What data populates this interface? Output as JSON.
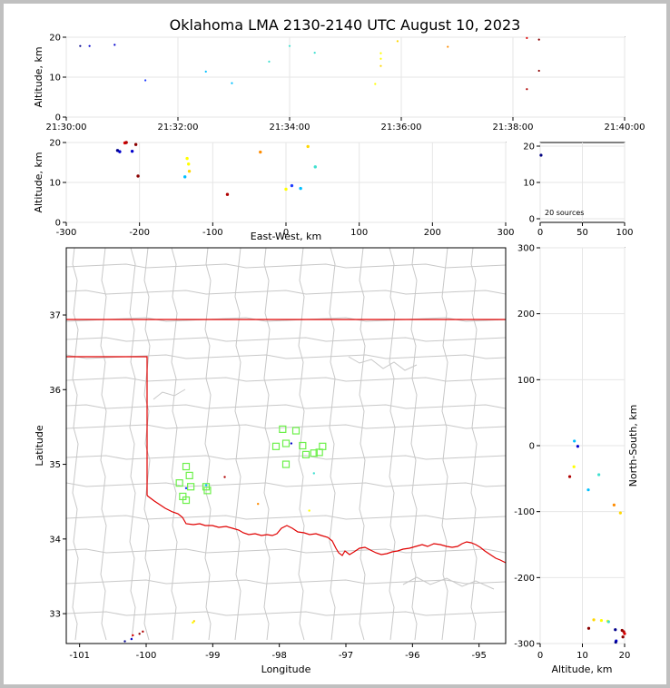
{
  "title": "Oklahoma LMA 2130-2140 UTC August 10, 2023",
  "panels": {
    "time_height": {
      "ylabel": "Altitude, km",
      "xticks": [
        "21:30:00",
        "21:32:00",
        "21:34:00",
        "21:36:00",
        "21:38:00",
        "21:40:00"
      ],
      "yticks": [
        "0",
        "10",
        "20"
      ]
    },
    "ew_height": {
      "ylabel": "Altitude, km",
      "xlabel": "East-West, km",
      "xticks": [
        "-300",
        "-200",
        "-100",
        "0",
        "100",
        "200",
        "300"
      ],
      "yticks": [
        "0",
        "10",
        "20"
      ]
    },
    "histogram": {
      "xticks": [
        "0",
        "50",
        "100"
      ],
      "yticks": [
        "0",
        "10",
        "20"
      ],
      "annotation": "20 sources"
    },
    "plan": {
      "xlabel": "Longitude",
      "ylabel": "Latitude",
      "xticks": [
        "-101",
        "-100",
        "-99",
        "-98",
        "-97",
        "-96",
        "-95"
      ],
      "yticks": [
        "33",
        "34",
        "35",
        "36",
        "37"
      ]
    },
    "ns_height": {
      "xlabel": "Altitude, km",
      "ylabel": "North-South, km",
      "xticks": [
        "0",
        "10",
        "20"
      ],
      "yticks": [
        "-300",
        "-200",
        "-100",
        "0",
        "100",
        "200",
        "300"
      ]
    }
  },
  "chart_data": [
    {
      "type": "scatter",
      "panel": "time vs altitude",
      "xlim": [
        "21:30:00",
        "21:40:00"
      ],
      "ylim": [
        0,
        20
      ],
      "ylabel": "Altitude, km",
      "points": [
        {
          "t": "21:30:15",
          "alt": 17.8,
          "color": "#00008b"
        },
        {
          "t": "21:30:25",
          "alt": 17.8,
          "color": "#0000cd"
        },
        {
          "t": "21:30:52",
          "alt": 18.1,
          "color": "#0000cd"
        },
        {
          "t": "21:31:25",
          "alt": 9.2,
          "color": "#1e3cff"
        },
        {
          "t": "21:32:30",
          "alt": 11.4,
          "color": "#00bfff"
        },
        {
          "t": "21:32:58",
          "alt": 8.5,
          "color": "#00bfff"
        },
        {
          "t": "21:33:38",
          "alt": 13.9,
          "color": "#40e0d0"
        },
        {
          "t": "21:34:00",
          "alt": 17.8,
          "color": "#40e0d0"
        },
        {
          "t": "21:34:27",
          "alt": 16.1,
          "color": "#40e0d0"
        },
        {
          "t": "21:35:32",
          "alt": 8.3,
          "color": "#ffff00"
        },
        {
          "t": "21:35:38",
          "alt": 16.0,
          "color": "#ffff00"
        },
        {
          "t": "21:35:38",
          "alt": 14.6,
          "color": "#ffff00"
        },
        {
          "t": "21:35:38",
          "alt": 12.8,
          "color": "#ffd700"
        },
        {
          "t": "21:35:56",
          "alt": 19.0,
          "color": "#ffd700"
        },
        {
          "t": "21:36:50",
          "alt": 17.6,
          "color": "#ff8c00"
        },
        {
          "t": "21:38:15",
          "alt": 19.8,
          "color": "#dc0000"
        },
        {
          "t": "21:38:15",
          "alt": 7.0,
          "color": "#b00000"
        },
        {
          "t": "21:38:28",
          "alt": 19.4,
          "color": "#8b0000"
        },
        {
          "t": "21:38:28",
          "alt": 11.6,
          "color": "#8b0000"
        }
      ]
    },
    {
      "type": "scatter",
      "panel": "east-west vs altitude",
      "xlim": [
        -300,
        300
      ],
      "ylim": [
        0,
        20
      ],
      "xlabel": "East-West, km",
      "ylabel": "Altitude, km",
      "points": [
        {
          "x": -230,
          "y": 18.0,
          "color": "#00008b"
        },
        {
          "x": -227,
          "y": 17.7,
          "color": "#0000cd"
        },
        {
          "x": -220,
          "y": 19.9,
          "color": "#dc0000"
        },
        {
          "x": -218,
          "y": 20.0,
          "color": "#b00000"
        },
        {
          "x": -210,
          "y": 17.8,
          "color": "#0000cd"
        },
        {
          "x": -205,
          "y": 19.5,
          "color": "#8b0000"
        },
        {
          "x": -202,
          "y": 11.6,
          "color": "#8b0000"
        },
        {
          "x": -135,
          "y": 16.0,
          "color": "#ffff00"
        },
        {
          "x": -133,
          "y": 14.6,
          "color": "#ffff00"
        },
        {
          "x": -132,
          "y": 12.8,
          "color": "#ffd700"
        },
        {
          "x": -138,
          "y": 11.4,
          "color": "#00bfff"
        },
        {
          "x": -80,
          "y": 7.0,
          "color": "#b00000"
        },
        {
          "x": -35,
          "y": 17.6,
          "color": "#ff8c00"
        },
        {
          "x": 0,
          "y": 8.3,
          "color": "#ffff00"
        },
        {
          "x": 8,
          "y": 9.2,
          "color": "#1e3cff"
        },
        {
          "x": 20,
          "y": 8.5,
          "color": "#00bfff"
        },
        {
          "x": 30,
          "y": 19.0,
          "color": "#ffd700"
        },
        {
          "x": 40,
          "y": 13.9,
          "color": "#40e0d0"
        }
      ]
    },
    {
      "type": "scatter",
      "panel": "altitude histogram",
      "xlim": [
        0,
        100
      ],
      "ylim": [
        0,
        20
      ],
      "annotation": "20 sources",
      "points": [
        {
          "x": 1,
          "y": 17.5,
          "color": "#000080"
        }
      ]
    },
    {
      "type": "scatter",
      "panel": "plan view",
      "xlim": [
        -101.2,
        -94.6
      ],
      "ylim": [
        32.6,
        37.9
      ],
      "xlabel": "Longitude",
      "ylabel": "Latitude",
      "stations": [
        {
          "lon": -97.95,
          "lat": 35.47
        },
        {
          "lon": -97.75,
          "lat": 35.45
        },
        {
          "lon": -97.9,
          "lat": 35.28
        },
        {
          "lon": -98.05,
          "lat": 35.24
        },
        {
          "lon": -97.65,
          "lat": 35.25
        },
        {
          "lon": -97.48,
          "lat": 35.15
        },
        {
          "lon": -97.6,
          "lat": 35.13
        },
        {
          "lon": -97.35,
          "lat": 35.24
        },
        {
          "lon": -97.4,
          "lat": 35.16
        },
        {
          "lon": -97.9,
          "lat": 35.0
        },
        {
          "lon": -99.4,
          "lat": 34.97
        },
        {
          "lon": -99.35,
          "lat": 34.85
        },
        {
          "lon": -99.5,
          "lat": 34.75
        },
        {
          "lon": -99.33,
          "lat": 34.7
        },
        {
          "lon": -99.1,
          "lat": 34.7
        },
        {
          "lon": -99.45,
          "lat": 34.57
        },
        {
          "lon": -99.4,
          "lat": 34.52
        },
        {
          "lon": -99.08,
          "lat": 34.65
        }
      ],
      "sources": [
        {
          "lon": -100.32,
          "lat": 32.63,
          "color": "#00008b"
        },
        {
          "lon": -100.22,
          "lat": 32.66,
          "color": "#0000cd"
        },
        {
          "lon": -100.2,
          "lat": 32.71,
          "color": "#dc0000"
        },
        {
          "lon": -100.1,
          "lat": 32.73,
          "color": "#8b0000"
        },
        {
          "lon": -100.05,
          "lat": 32.76,
          "color": "#b00000"
        },
        {
          "lon": -99.3,
          "lat": 32.88,
          "color": "#ffff00"
        },
        {
          "lon": -99.28,
          "lat": 32.9,
          "color": "#ffd700"
        },
        {
          "lon": -99.4,
          "lat": 34.68,
          "color": "#1e3cff"
        },
        {
          "lon": -99.1,
          "lat": 34.72,
          "color": "#00bfff"
        },
        {
          "lon": -98.82,
          "lat": 34.83,
          "color": "#b00000"
        },
        {
          "lon": -98.32,
          "lat": 34.47,
          "color": "#ff8c00"
        },
        {
          "lon": -97.55,
          "lat": 34.38,
          "color": "#ffff00"
        },
        {
          "lon": -97.48,
          "lat": 34.88,
          "color": "#40e0d0"
        },
        {
          "lon": -97.82,
          "lat": 35.28,
          "color": "#0000cd"
        }
      ]
    },
    {
      "type": "scatter",
      "panel": "altitude vs north-south",
      "xlim": [
        0,
        20
      ],
      "ylim": [
        -300,
        300
      ],
      "xlabel": "Altitude, km",
      "ylabel": "North-South, km",
      "points": [
        {
          "x": 8.1,
          "y": 7,
          "color": "#00bfff"
        },
        {
          "x": 8.9,
          "y": -1,
          "color": "#0000cd"
        },
        {
          "x": 8.0,
          "y": -32,
          "color": "#ffff00"
        },
        {
          "x": 7.0,
          "y": -47,
          "color": "#b00000"
        },
        {
          "x": 13.9,
          "y": -44,
          "color": "#40e0d0"
        },
        {
          "x": 11.4,
          "y": -67,
          "color": "#00bfff"
        },
        {
          "x": 17.5,
          "y": -90,
          "color": "#ff8c00"
        },
        {
          "x": 19.0,
          "y": -102,
          "color": "#ffd700"
        },
        {
          "x": 12.7,
          "y": -264,
          "color": "#ffd700"
        },
        {
          "x": 14.5,
          "y": -265,
          "color": "#ffff00"
        },
        {
          "x": 16.0,
          "y": -266,
          "color": "#ffff00"
        },
        {
          "x": 16.2,
          "y": -267,
          "color": "#40e0d0"
        },
        {
          "x": 11.5,
          "y": -277,
          "color": "#8b0000"
        },
        {
          "x": 17.8,
          "y": -279,
          "color": "#00008b"
        },
        {
          "x": 19.4,
          "y": -280,
          "color": "#8b0000"
        },
        {
          "x": 19.8,
          "y": -282,
          "color": "#b00000"
        },
        {
          "x": 20.0,
          "y": -285,
          "color": "#dc0000"
        },
        {
          "x": 19.6,
          "y": -290,
          "color": "#8b0000"
        },
        {
          "x": 18.0,
          "y": -296,
          "color": "#0000cd"
        },
        {
          "x": 17.9,
          "y": -298,
          "color": "#00008b"
        }
      ]
    }
  ]
}
